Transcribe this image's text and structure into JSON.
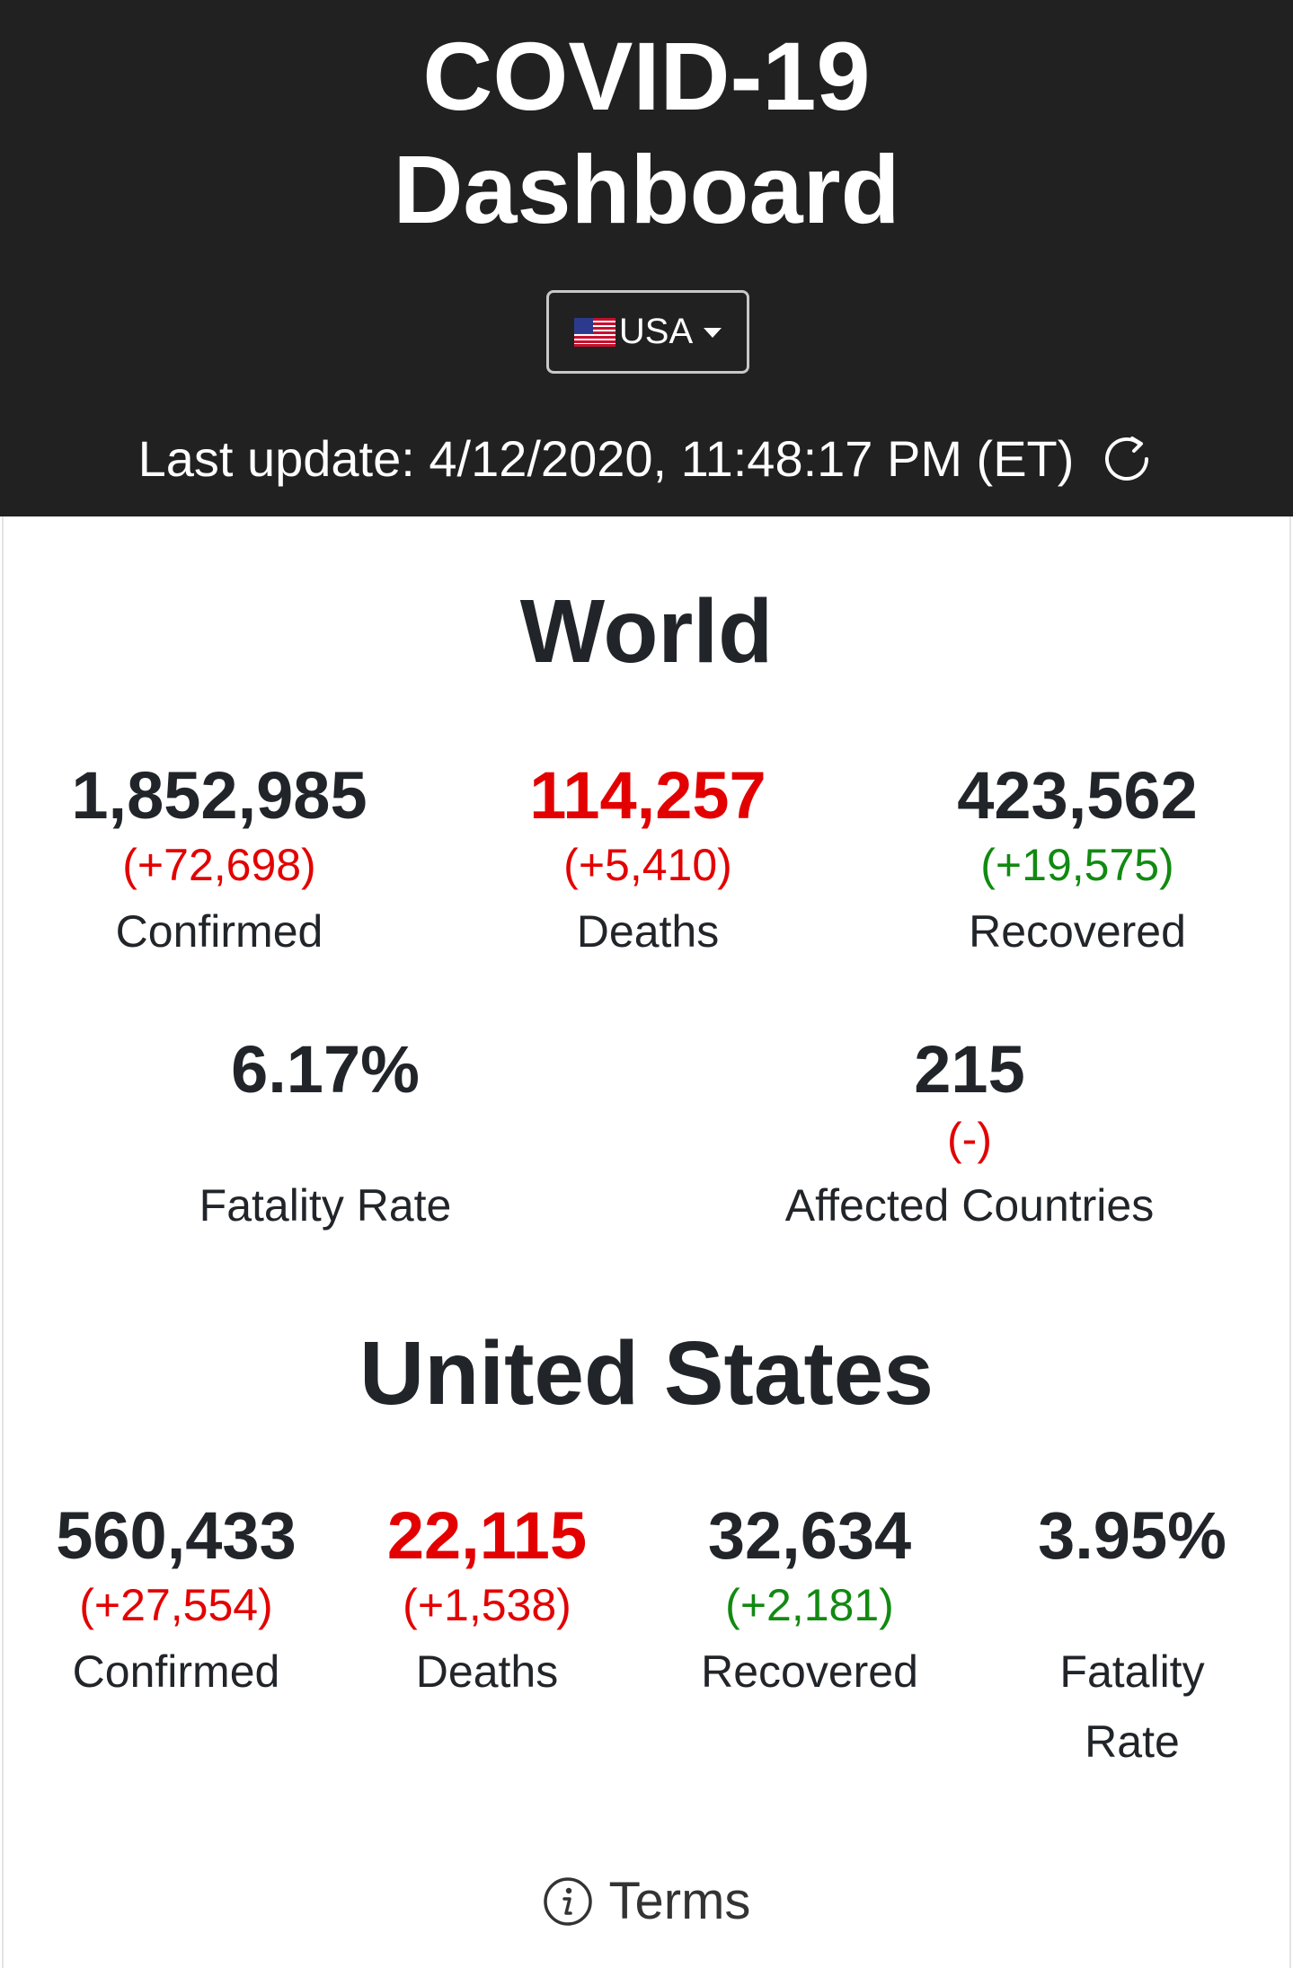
{
  "header": {
    "title_line1": "COVID-19",
    "title_line2": "Dashboard",
    "country_select": {
      "selected": "USA",
      "flag_icon": "us-flag-icon"
    },
    "last_update": "Last update: 4/12/2020, 11:48:17 PM (ET)",
    "refresh_icon": "refresh-icon"
  },
  "world": {
    "title": "World",
    "confirmed": {
      "value": "1,852,985",
      "delta": "(+72,698)",
      "label": "Confirmed"
    },
    "deaths": {
      "value": "114,257",
      "delta": "(+5,410)",
      "label": "Deaths"
    },
    "recovered": {
      "value": "423,562",
      "delta": "(+19,575)",
      "label": "Recovered"
    },
    "fatality_rate": {
      "value": "6.17%",
      "label": "Fatality Rate"
    },
    "affected_countries": {
      "value": "215",
      "delta": "(-)",
      "label": "Affected Countries"
    }
  },
  "us": {
    "title": "United States",
    "confirmed": {
      "value": "560,433",
      "delta": "(+27,554)",
      "label": "Confirmed"
    },
    "deaths": {
      "value": "22,115",
      "delta": "(+1,538)",
      "label": "Deaths"
    },
    "recovered": {
      "value": "32,634",
      "delta": "(+2,181)",
      "label": "Recovered"
    },
    "fatality_rate": {
      "value": "3.95%",
      "label_line1": "Fatality",
      "label_line2": "Rate"
    }
  },
  "footer": {
    "terms_label": "Terms",
    "info_icon": "info-icon"
  },
  "colors": {
    "header_bg": "#212121",
    "deaths_red": "#e30000",
    "recovered_green": "#118a11",
    "text_dark": "#212529"
  }
}
